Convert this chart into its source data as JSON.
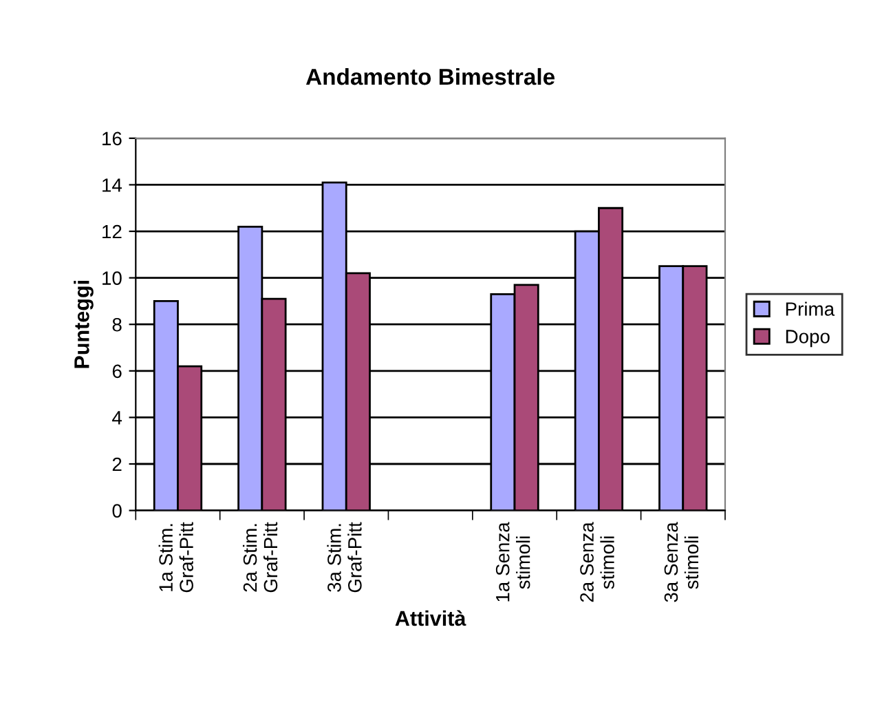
{
  "chart_data": {
    "type": "bar",
    "title": "Andamento Bimestrale",
    "xlabel": "Attività",
    "ylabel": "Punteggi",
    "categories": [
      "1a Stim.\nGraf-Pitt",
      "2a Stim.\nGraf-Pitt",
      "3a Stim.\nGraf-Pitt",
      null,
      "1a Senza\nstimoli",
      "2a Senza\nstimoli",
      "3a Senza\nstimoli"
    ],
    "series": [
      {
        "name": "Prima",
        "color": "#a9a9ff",
        "values": [
          9.0,
          12.2,
          14.1,
          null,
          9.3,
          12.0,
          10.5
        ]
      },
      {
        "name": "Dopo",
        "color": "#aa4a78",
        "values": [
          6.2,
          9.1,
          10.2,
          null,
          9.7,
          13.0,
          10.5
        ]
      }
    ],
    "ylim": [
      0,
      16
    ],
    "yticks": [
      0,
      2,
      4,
      6,
      8,
      10,
      12,
      14,
      16
    ],
    "grid": "y",
    "legend": "right"
  }
}
